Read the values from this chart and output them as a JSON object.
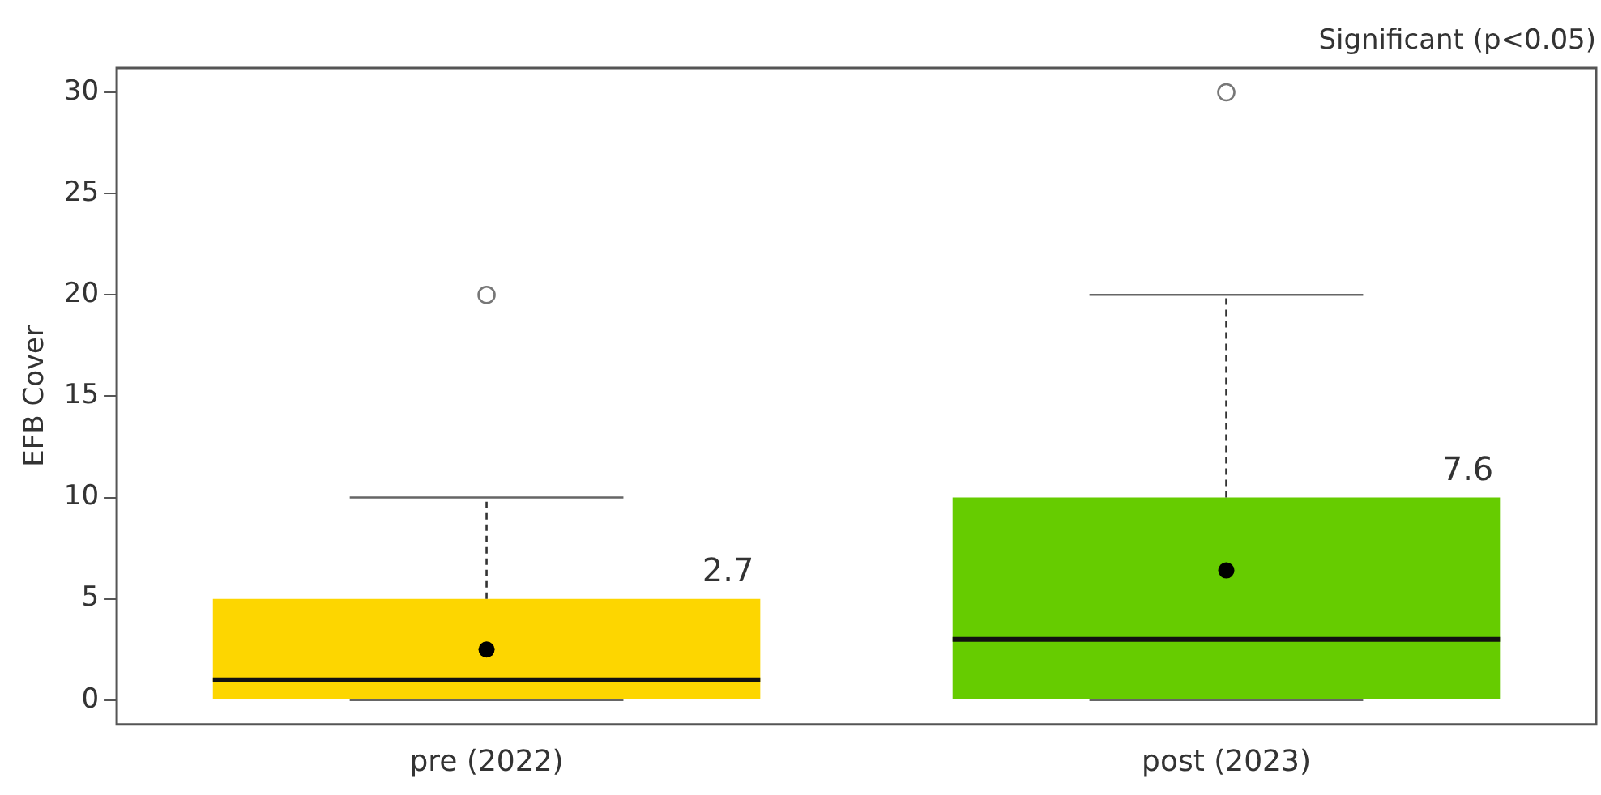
{
  "chart_data": {
    "type": "box",
    "categories": [
      "pre (2022)",
      "post (2023)"
    ],
    "colors": [
      "#fdd600",
      "#66cc00"
    ],
    "boxes": [
      {
        "low": 0,
        "q1": 0,
        "median": 1,
        "q3": 5,
        "high": 10,
        "mean": 2.5,
        "outliers": [
          20
        ]
      },
      {
        "low": 0,
        "q1": 0,
        "median": 3,
        "q3": 10,
        "high": 20,
        "mean": 6.4,
        "outliers": [
          30
        ]
      }
    ],
    "ylabel": "EFB Cover",
    "ylim": [
      -1.2,
      31.2
    ],
    "yticks": [
      0,
      5,
      10,
      15,
      20,
      25,
      30
    ],
    "grid": false,
    "legend": false,
    "annotations": [
      "Significant (p<0.05)",
      "2.7",
      "7.6"
    ]
  }
}
